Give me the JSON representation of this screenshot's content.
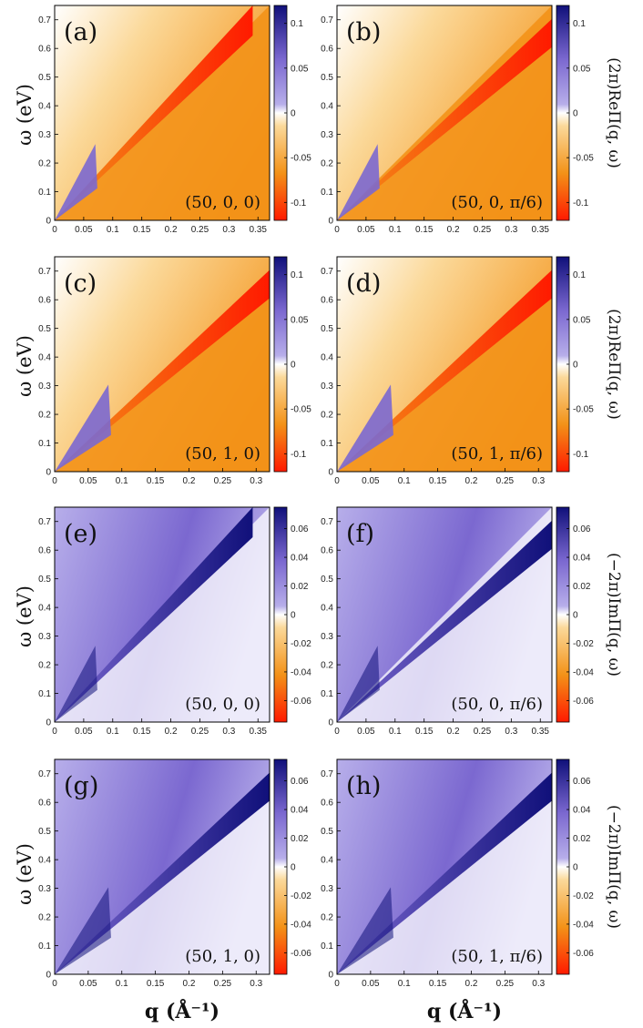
{
  "figure": {
    "y_axis_label": "ω (eV)",
    "x_axis_label": "q (Å⁻¹)"
  },
  "colors": {
    "neg_strong": "#ff1a00",
    "neg_mid": "#f39218",
    "neg_weak": "#fbd99a",
    "zero": "#ffffff",
    "pos_weak": "#b7aeea",
    "pos_mid": "#7b68d0",
    "pos_strong": "#10107a"
  },
  "chart_data": [
    {
      "id": "a",
      "type": "heatmap",
      "quantity": "Re",
      "label": "(a)",
      "params": "(50, 0, 0)",
      "x_range": [
        0,
        0.37
      ],
      "y_range": [
        0,
        0.75
      ],
      "x_ticks": [
        "0",
        "0.05",
        "0.1",
        "0.15",
        "0.2",
        "0.25",
        "0.3",
        "0.35"
      ],
      "x_tick_values": [
        0,
        0.05,
        0.1,
        0.15,
        0.2,
        0.25,
        0.3,
        0.35
      ],
      "y_ticks": [
        "0",
        "0.1",
        "0.2",
        "0.3",
        "0.4",
        "0.5",
        "0.6",
        "0.7"
      ],
      "y_tick_values": [
        0,
        0.1,
        0.2,
        0.3,
        0.4,
        0.5,
        0.6,
        0.7
      ],
      "colorbar": {
        "ticks": [
          "0.1",
          "0.05",
          "0",
          "-0.05",
          "-0.1"
        ],
        "tick_values": [
          0.1,
          0.05,
          0,
          -0.05,
          -0.1
        ],
        "range": [
          -0.12,
          0.12
        ],
        "label": ""
      }
    },
    {
      "id": "b",
      "type": "heatmap",
      "quantity": "Re",
      "label": "(b)",
      "params": "(50, 0, π/6)",
      "x_range": [
        0,
        0.37
      ],
      "y_range": [
        0,
        0.75
      ],
      "x_ticks": [
        "0",
        "0.05",
        "0.1",
        "0.15",
        "0.2",
        "0.25",
        "0.3",
        "0.35"
      ],
      "x_tick_values": [
        0,
        0.05,
        0.1,
        0.15,
        0.2,
        0.25,
        0.3,
        0.35
      ],
      "y_ticks": [
        "0",
        "0.1",
        "0.2",
        "0.3",
        "0.4",
        "0.5",
        "0.6",
        "0.7"
      ],
      "y_tick_values": [
        0,
        0.1,
        0.2,
        0.3,
        0.4,
        0.5,
        0.6,
        0.7
      ],
      "colorbar": {
        "ticks": [
          "0.1",
          "0.05",
          "0",
          "-0.05",
          "-0.1"
        ],
        "tick_values": [
          0.1,
          0.05,
          0,
          -0.05,
          -0.1
        ],
        "range": [
          -0.12,
          0.12
        ],
        "label": "(2π)ReΠ(q, ω)"
      }
    },
    {
      "id": "c",
      "type": "heatmap",
      "quantity": "Re",
      "label": "(c)",
      "params": "(50, 1, 0)",
      "x_range": [
        0,
        0.32
      ],
      "y_range": [
        0,
        0.75
      ],
      "x_ticks": [
        "0",
        "0.05",
        "0.1",
        "0.15",
        "0.2",
        "0.25",
        "0.3"
      ],
      "x_tick_values": [
        0,
        0.05,
        0.1,
        0.15,
        0.2,
        0.25,
        0.3
      ],
      "y_ticks": [
        "0",
        "0.1",
        "0.2",
        "0.3",
        "0.4",
        "0.5",
        "0.6",
        "0.7"
      ],
      "y_tick_values": [
        0,
        0.1,
        0.2,
        0.3,
        0.4,
        0.5,
        0.6,
        0.7
      ],
      "colorbar": {
        "ticks": [
          "0.1",
          "0.05",
          "0",
          "-0.05",
          "-0.1"
        ],
        "tick_values": [
          0.1,
          0.05,
          0,
          -0.05,
          -0.1
        ],
        "range": [
          -0.12,
          0.12
        ],
        "label": ""
      }
    },
    {
      "id": "d",
      "type": "heatmap",
      "quantity": "Re",
      "label": "(d)",
      "params": "(50, 1, π/6)",
      "x_range": [
        0,
        0.32
      ],
      "y_range": [
        0,
        0.75
      ],
      "x_ticks": [
        "0",
        "0.05",
        "0.1",
        "0.15",
        "0.2",
        "0.25",
        "0.3"
      ],
      "x_tick_values": [
        0,
        0.05,
        0.1,
        0.15,
        0.2,
        0.25,
        0.3
      ],
      "y_ticks": [
        "0",
        "0.1",
        "0.2",
        "0.3",
        "0.4",
        "0.5",
        "0.6",
        "0.7"
      ],
      "y_tick_values": [
        0,
        0.1,
        0.2,
        0.3,
        0.4,
        0.5,
        0.6,
        0.7
      ],
      "colorbar": {
        "ticks": [
          "0.1",
          "0.05",
          "0",
          "-0.05",
          "-0.1"
        ],
        "tick_values": [
          0.1,
          0.05,
          0,
          -0.05,
          -0.1
        ],
        "range": [
          -0.12,
          0.12
        ],
        "label": "(2π)ReΠ(q, ω)"
      }
    },
    {
      "id": "e",
      "type": "heatmap",
      "quantity": "Im",
      "label": "(e)",
      "params": "(50, 0, 0)",
      "x_range": [
        0,
        0.37
      ],
      "y_range": [
        0,
        0.75
      ],
      "x_ticks": [
        "0",
        "0.05",
        "0.1",
        "0.15",
        "0.2",
        "0.25",
        "0.3",
        "0.35"
      ],
      "x_tick_values": [
        0,
        0.05,
        0.1,
        0.15,
        0.2,
        0.25,
        0.3,
        0.35
      ],
      "y_ticks": [
        "0",
        "0.1",
        "0.2",
        "0.3",
        "0.4",
        "0.5",
        "0.6",
        "0.7"
      ],
      "y_tick_values": [
        0,
        0.1,
        0.2,
        0.3,
        0.4,
        0.5,
        0.6,
        0.7
      ],
      "colorbar": {
        "ticks": [
          "0.06",
          "0.04",
          "0.02",
          "0",
          "-0.02",
          "-0.04",
          "-0.06"
        ],
        "tick_values": [
          0.06,
          0.04,
          0.02,
          0,
          -0.02,
          -0.04,
          -0.06
        ],
        "range": [
          -0.075,
          0.075
        ],
        "label": ""
      }
    },
    {
      "id": "f",
      "type": "heatmap",
      "quantity": "Im",
      "label": "(f)",
      "params": "(50, 0, π/6)",
      "x_range": [
        0,
        0.37
      ],
      "y_range": [
        0,
        0.75
      ],
      "x_ticks": [
        "0",
        "0.05",
        "0.1",
        "0.15",
        "0.2",
        "0.25",
        "0.3",
        "0.35"
      ],
      "x_tick_values": [
        0,
        0.05,
        0.1,
        0.15,
        0.2,
        0.25,
        0.3,
        0.35
      ],
      "y_ticks": [
        "0",
        "0.1",
        "0.2",
        "0.3",
        "0.4",
        "0.5",
        "0.6",
        "0.7"
      ],
      "y_tick_values": [
        0,
        0.1,
        0.2,
        0.3,
        0.4,
        0.5,
        0.6,
        0.7
      ],
      "colorbar": {
        "ticks": [
          "0.06",
          "0.04",
          "0.02",
          "0",
          "-0.02",
          "-0.04",
          "-0.06"
        ],
        "tick_values": [
          0.06,
          0.04,
          0.02,
          0,
          -0.02,
          -0.04,
          -0.06
        ],
        "range": [
          -0.075,
          0.075
        ],
        "label": "(−2π)ImΠ(q, ω)"
      }
    },
    {
      "id": "g",
      "type": "heatmap",
      "quantity": "Im",
      "label": "(g)",
      "params": "(50, 1, 0)",
      "x_range": [
        0,
        0.32
      ],
      "y_range": [
        0,
        0.75
      ],
      "x_ticks": [
        "0",
        "0.05",
        "0.1",
        "0.15",
        "0.2",
        "0.25",
        "0.3"
      ],
      "x_tick_values": [
        0,
        0.05,
        0.1,
        0.15,
        0.2,
        0.25,
        0.3
      ],
      "y_ticks": [
        "0",
        "0.1",
        "0.2",
        "0.3",
        "0.4",
        "0.5",
        "0.6",
        "0.7"
      ],
      "y_tick_values": [
        0,
        0.1,
        0.2,
        0.3,
        0.4,
        0.5,
        0.6,
        0.7
      ],
      "colorbar": {
        "ticks": [
          "0.06",
          "0.04",
          "0.02",
          "0",
          "-0.02",
          "-0.04",
          "-0.06"
        ],
        "tick_values": [
          0.06,
          0.04,
          0.02,
          0,
          -0.02,
          -0.04,
          -0.06
        ],
        "range": [
          -0.075,
          0.075
        ],
        "label": ""
      }
    },
    {
      "id": "h",
      "type": "heatmap",
      "quantity": "Im",
      "label": "(h)",
      "params": "(50, 1, π/6)",
      "x_range": [
        0,
        0.32
      ],
      "y_range": [
        0,
        0.75
      ],
      "x_ticks": [
        "0",
        "0.05",
        "0.1",
        "0.15",
        "0.2",
        "0.25",
        "0.3"
      ],
      "x_tick_values": [
        0,
        0.05,
        0.1,
        0.15,
        0.2,
        0.25,
        0.3
      ],
      "y_ticks": [
        "0",
        "0.1",
        "0.2",
        "0.3",
        "0.4",
        "0.5",
        "0.6",
        "0.7"
      ],
      "y_tick_values": [
        0,
        0.1,
        0.2,
        0.3,
        0.4,
        0.5,
        0.6,
        0.7
      ],
      "colorbar": {
        "ticks": [
          "0.06",
          "0.04",
          "0.02",
          "0",
          "-0.02",
          "-0.04",
          "-0.06"
        ],
        "tick_values": [
          0.06,
          0.04,
          0.02,
          0,
          -0.02,
          -0.04,
          -0.06
        ],
        "range": [
          -0.075,
          0.075
        ],
        "label": "(−2π)ImΠ(q, ω)"
      }
    }
  ]
}
